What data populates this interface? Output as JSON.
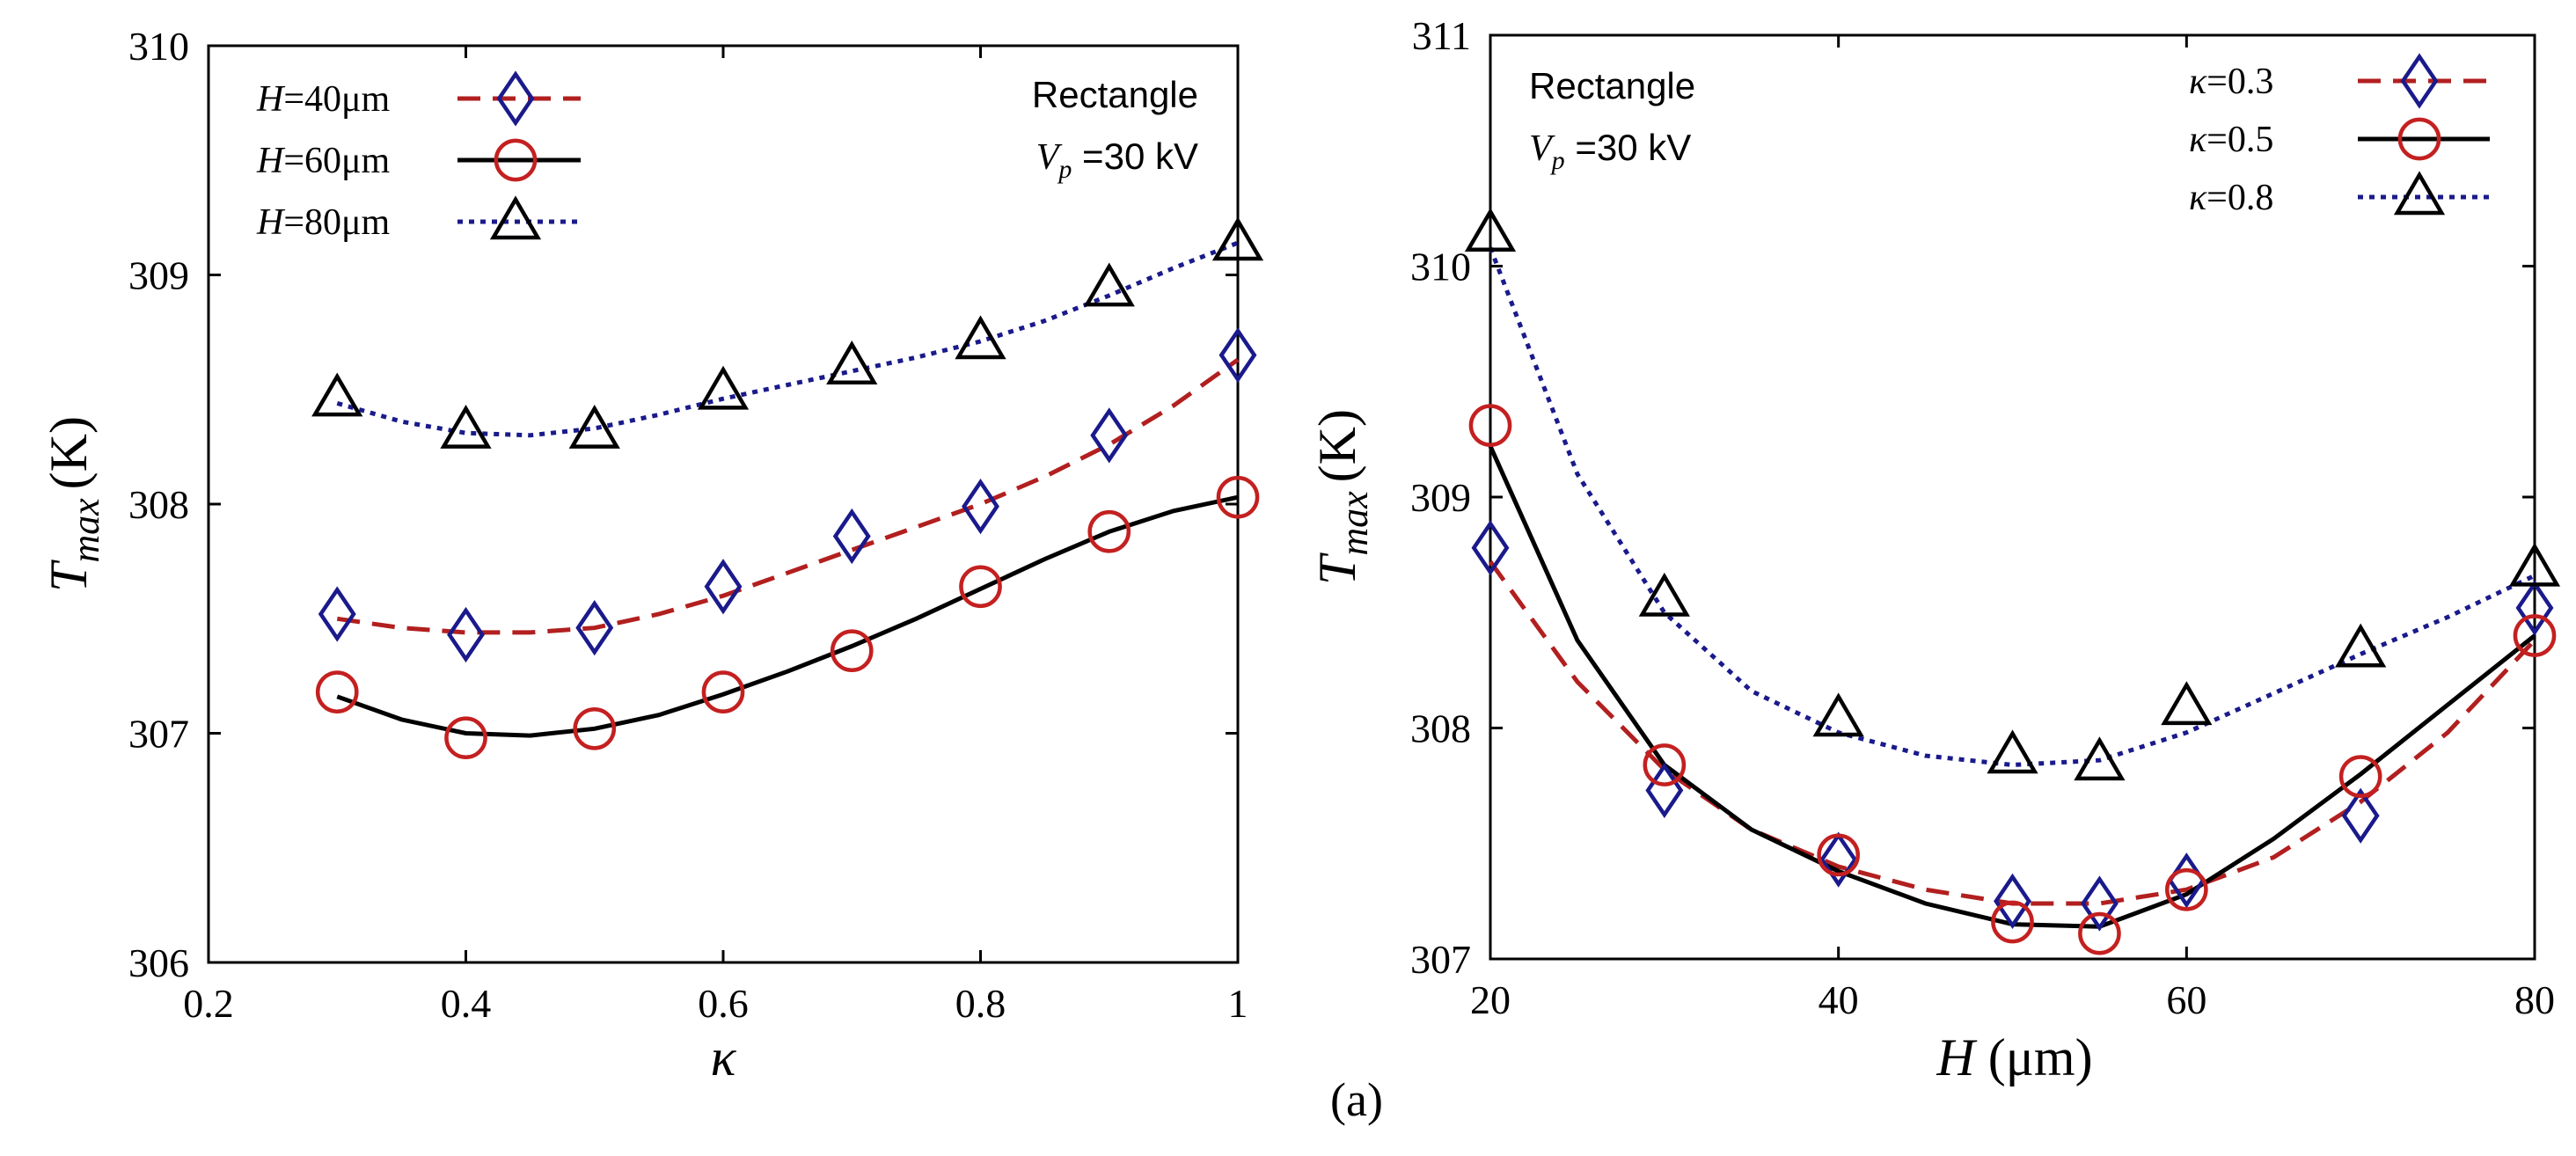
{
  "figure_label": "(a)",
  "chart_data": [
    {
      "type": "line",
      "xlabel": "κ",
      "ylabel_main": "T",
      "ylabel_sub": "max",
      "ylabel_unit": "(K)",
      "xlim": [
        0.2,
        1.0
      ],
      "ylim": [
        306,
        310
      ],
      "xticks": [
        0.2,
        0.4,
        0.6,
        0.8,
        1.0
      ],
      "xtick_labels": [
        "0.2",
        "0.4",
        "0.6",
        "0.8",
        "1"
      ],
      "yticks": [
        306,
        307,
        308,
        309,
        310
      ],
      "ytick_labels": [
        "306",
        "307",
        "308",
        "309",
        "310"
      ],
      "annotation_line1": "Rectangle",
      "annotation_v": "V",
      "annotation_v_sub": "p",
      "annotation_v_value": " =30 kV",
      "series": [
        {
          "name_var": "H",
          "name_value": "=40μm",
          "color": "#b21f1f",
          "marker_color": "#1a1a8c",
          "marker": "diamond",
          "dash": "dashed",
          "x": [
            0.3,
            0.4,
            0.5,
            0.6,
            0.7,
            0.8,
            0.9,
            1.0
          ],
          "y": [
            307.52,
            307.43,
            307.46,
            307.64,
            307.86,
            307.99,
            308.3,
            308.65
          ],
          "curve_x": [
            0.3,
            0.35,
            0.4,
            0.45,
            0.5,
            0.55,
            0.6,
            0.65,
            0.7,
            0.75,
            0.8,
            0.85,
            0.9,
            0.95,
            1.0
          ],
          "curve_y": [
            307.5,
            307.46,
            307.44,
            307.44,
            307.46,
            307.52,
            307.6,
            307.7,
            307.8,
            307.9,
            308.0,
            308.12,
            308.26,
            308.43,
            308.63
          ]
        },
        {
          "name_var": "H",
          "name_value": "=60μm",
          "color": "#000000",
          "marker_color": "#c42020",
          "marker": "circle",
          "dash": "solid",
          "x": [
            0.3,
            0.4,
            0.5,
            0.6,
            0.7,
            0.8,
            0.9,
            1.0
          ],
          "y": [
            307.18,
            306.98,
            307.02,
            307.18,
            307.36,
            307.64,
            307.88,
            308.03
          ],
          "curve_x": [
            0.3,
            0.35,
            0.4,
            0.45,
            0.5,
            0.55,
            0.6,
            0.65,
            0.7,
            0.75,
            0.8,
            0.85,
            0.9,
            0.95,
            1.0
          ],
          "curve_y": [
            307.16,
            307.06,
            307.0,
            306.99,
            307.02,
            307.08,
            307.17,
            307.27,
            307.38,
            307.5,
            307.63,
            307.76,
            307.88,
            307.97,
            308.03
          ]
        },
        {
          "name_var": "H",
          "name_value": "=80μm",
          "color": "#1a1a8c",
          "marker_color": "#000000",
          "marker": "triangle",
          "dash": "dotted",
          "x": [
            0.3,
            0.4,
            0.5,
            0.6,
            0.7,
            0.8,
            0.9,
            1.0
          ],
          "y": [
            308.46,
            308.32,
            308.32,
            308.49,
            308.6,
            308.71,
            308.94,
            309.14
          ],
          "curve_x": [
            0.3,
            0.35,
            0.4,
            0.45,
            0.5,
            0.55,
            0.6,
            0.65,
            0.7,
            0.75,
            0.8,
            0.85,
            0.9,
            0.95,
            1.0
          ],
          "curve_y": [
            308.44,
            308.36,
            308.31,
            308.3,
            308.33,
            308.39,
            308.46,
            308.52,
            308.58,
            308.64,
            308.71,
            308.8,
            308.91,
            309.03,
            309.14
          ]
        }
      ]
    },
    {
      "type": "line",
      "xlabel_var": "H",
      "xlabel_unit": " (μm)",
      "ylabel_main": "T",
      "ylabel_sub": "max",
      "ylabel_unit": "(K)",
      "xlim": [
        20,
        80
      ],
      "ylim": [
        307,
        311
      ],
      "xticks": [
        20,
        40,
        60,
        80
      ],
      "xtick_labels": [
        "20",
        "40",
        "60",
        "80"
      ],
      "yticks": [
        307,
        308,
        309,
        310,
        311
      ],
      "ytick_labels": [
        "307",
        "308",
        "309",
        "310",
        "311"
      ],
      "annotation_line1": "Rectangle",
      "annotation_v": "V",
      "annotation_v_sub": "p",
      "annotation_v_value": " =30 kV",
      "series": [
        {
          "name_var": "κ",
          "name_value": "=0.3",
          "color": "#b21f1f",
          "marker_color": "#1a1a8c",
          "marker": "diamond",
          "dash": "dashed",
          "x": [
            20,
            30,
            40,
            50,
            55,
            60,
            70,
            80
          ],
          "y": [
            308.78,
            307.73,
            307.43,
            307.25,
            307.24,
            307.34,
            307.62,
            308.52
          ],
          "curve_x": [
            20,
            25,
            30,
            35,
            40,
            45,
            50,
            55,
            60,
            65,
            70,
            75,
            80
          ],
          "curve_y": [
            308.72,
            308.2,
            307.82,
            307.56,
            307.4,
            307.3,
            307.24,
            307.24,
            307.3,
            307.44,
            307.68,
            307.98,
            308.38
          ]
        },
        {
          "name_var": "κ",
          "name_value": "=0.5",
          "color": "#000000",
          "marker_color": "#c42020",
          "marker": "circle",
          "dash": "solid",
          "x": [
            20,
            30,
            40,
            50,
            55,
            60,
            70,
            80
          ],
          "y": [
            309.31,
            307.84,
            307.45,
            307.16,
            307.11,
            307.3,
            307.79,
            308.4
          ],
          "curve_x": [
            20,
            25,
            30,
            35,
            40,
            45,
            50,
            55,
            60,
            65,
            70,
            75,
            80
          ],
          "curve_y": [
            309.22,
            308.38,
            307.84,
            307.56,
            307.38,
            307.24,
            307.15,
            307.14,
            307.28,
            307.52,
            307.8,
            308.1,
            308.4
          ]
        },
        {
          "name_var": "κ",
          "name_value": "=0.8",
          "color": "#1a1a8c",
          "marker_color": "#000000",
          "marker": "triangle",
          "dash": "dotted",
          "x": [
            20,
            30,
            40,
            50,
            55,
            60,
            70,
            80
          ],
          "y": [
            310.14,
            308.56,
            308.04,
            307.88,
            307.85,
            308.09,
            308.34,
            308.69
          ],
          "curve_x": [
            20,
            25,
            30,
            35,
            40,
            45,
            50,
            55,
            60,
            65,
            70,
            75,
            80
          ],
          "curve_y": [
            310.08,
            309.1,
            308.5,
            308.16,
            307.98,
            307.88,
            307.84,
            307.86,
            307.98,
            308.15,
            308.32,
            308.48,
            308.66
          ]
        }
      ]
    }
  ]
}
